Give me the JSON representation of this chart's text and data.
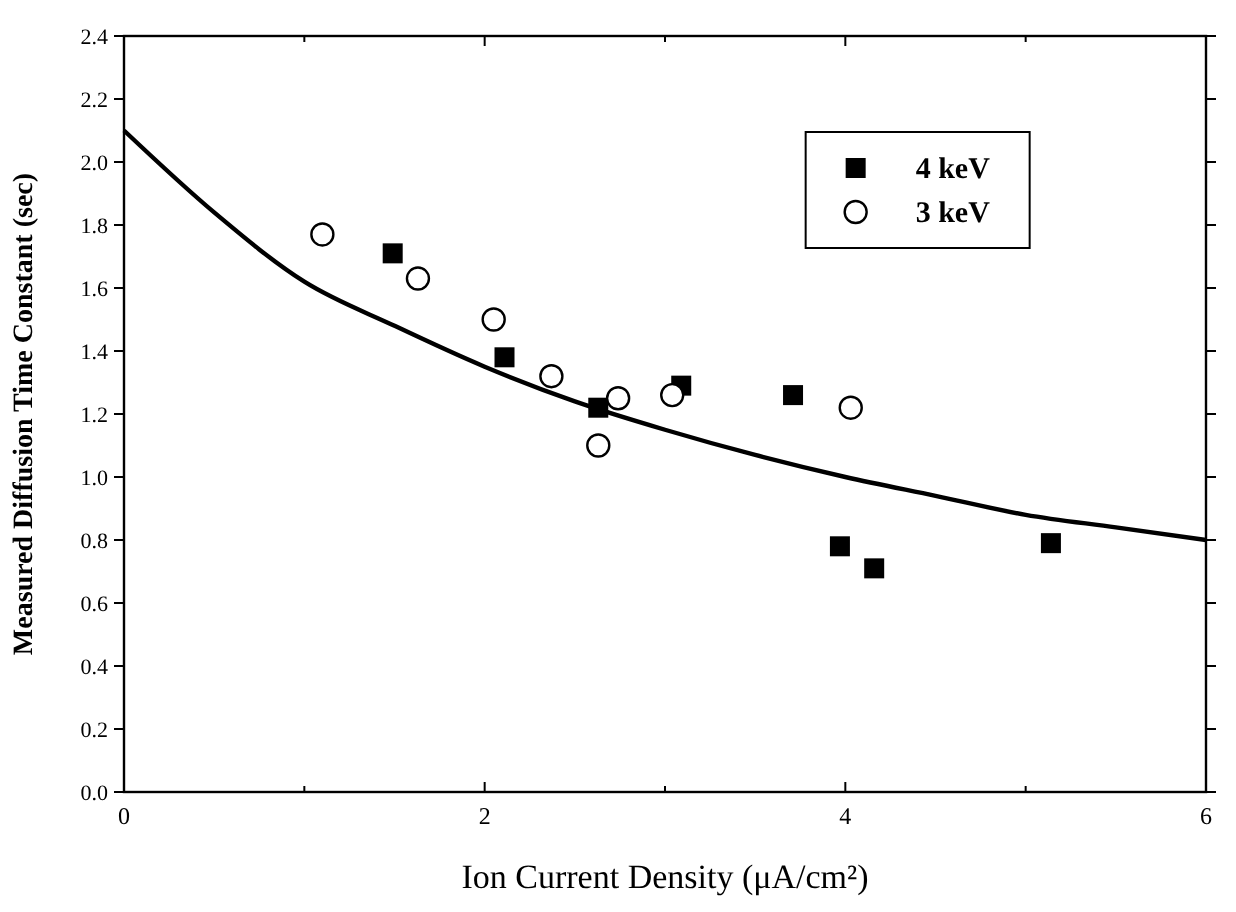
{
  "chart_data": {
    "type": "scatter",
    "xlabel": "Ion Current Density (μA/cm²)",
    "ylabel": "Measured Diffusion Time Constant (sec)",
    "xlim": [
      0,
      6
    ],
    "xticks": [
      0,
      {
        "value": 1,
        "label": null
      },
      2,
      {
        "value": 3,
        "label": null
      },
      4,
      {
        "value": 5,
        "label": null
      },
      6
    ],
    "ylim": [
      0,
      2.4
    ],
    "yticks": [
      {
        "value": 0,
        "label": "0.0"
      },
      {
        "value": 0.2,
        "label": "0.2"
      },
      {
        "value": 0.4,
        "label": "0.4"
      },
      {
        "value": 0.6,
        "label": "0.6"
      },
      {
        "value": 0.8,
        "label": "0.8"
      },
      {
        "value": 1,
        "label": "1.0"
      },
      {
        "value": 1.2,
        "label": "1.2"
      },
      {
        "value": 1.4,
        "label": "1.4"
      },
      {
        "value": 1.6,
        "label": "1.6"
      },
      {
        "value": 1.8,
        "label": "1.8"
      },
      {
        "value": 2,
        "label": "2.0"
      },
      {
        "value": 2.2,
        "label": "2.2"
      },
      {
        "value": 2.4,
        "label": "2.4"
      }
    ],
    "legend": "top right",
    "grid": false,
    "series": [
      {
        "name": "4 keV",
        "color": "#000000",
        "marker": "square",
        "x": [
          1.49,
          2.11,
          2.63,
          3.09,
          3.71,
          3.97,
          4.16,
          5.14
        ],
        "values": [
          1.71,
          1.38,
          1.22,
          1.29,
          1.26,
          0.78,
          0.71,
          0.79
        ]
      },
      {
        "name": "3 keV",
        "color": "#000000",
        "marker": "circle",
        "x": [
          1.1,
          1.63,
          2.05,
          2.37,
          2.63,
          2.74,
          3.04,
          4.03
        ],
        "values": [
          1.77,
          1.63,
          1.5,
          1.32,
          1.1,
          1.25,
          1.26,
          1.22
        ]
      },
      {
        "type": "line",
        "color": "#000000",
        "line_style": "solid",
        "x": [
          0,
          0.5,
          1,
          1.5,
          2,
          2.5,
          3,
          3.5,
          4,
          4.5,
          5,
          5.5,
          6
        ],
        "values": [
          2.1,
          1.84,
          1.62,
          1.48,
          1.35,
          1.24,
          1.15,
          1.07,
          1.0,
          0.94,
          0.88,
          0.84,
          0.8
        ]
      }
    ]
  }
}
